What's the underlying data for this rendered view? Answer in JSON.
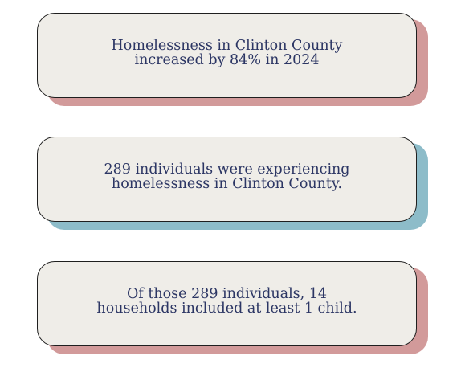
{
  "cards": [
    {
      "text": "Homelessness in Clinton County\nincreased by 84% in 2024",
      "shadow_color": "#d29a9a"
    },
    {
      "text": "289 individuals were experiencing\nhomelessness in Clinton County.",
      "shadow_color": "#8dbcc9"
    },
    {
      "text": "Of those 289 individuals, 14\nhouseholds included at least 1 child.",
      "shadow_color": "#d29a9a"
    }
  ]
}
